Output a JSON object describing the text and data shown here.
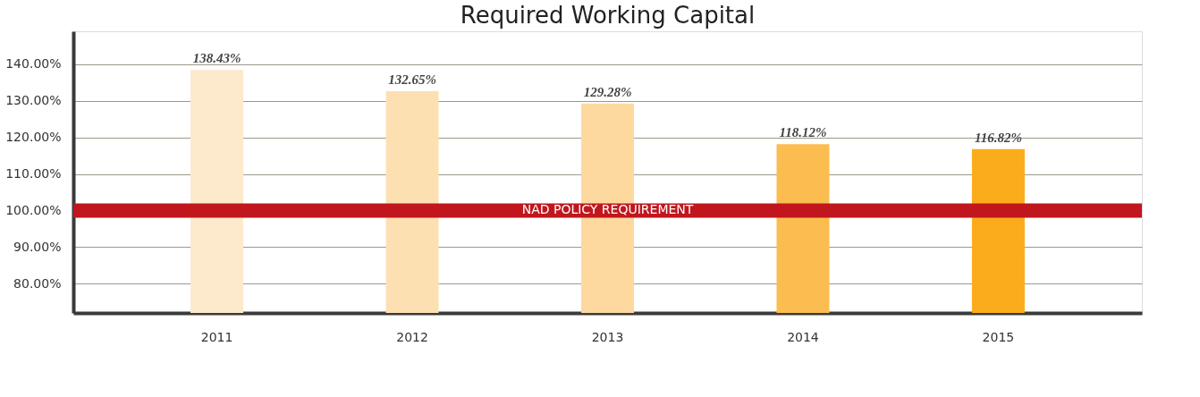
{
  "chart_data": {
    "type": "bar",
    "title": "Required Working Capital",
    "categories": [
      "2011",
      "2012",
      "2013",
      "2014",
      "2015"
    ],
    "values": [
      138.43,
      132.65,
      129.28,
      118.12,
      116.82
    ],
    "colors": [
      "#fde9cc",
      "#fde0b2",
      "#fdd9a0",
      "#fbbd4f",
      "#fbac1a"
    ],
    "value_labels": [
      "138.43%",
      "132.65%",
      "129.28%",
      "118.12%",
      "116.82%"
    ],
    "ylim": [
      72,
      149
    ],
    "yticks": [
      {
        "value": 80,
        "label": "80.00%"
      },
      {
        "value": 90,
        "label": "90.00%"
      },
      {
        "value": 100,
        "label": "100.00%"
      },
      {
        "value": 110,
        "label": "110.00%"
      },
      {
        "value": 120,
        "label": "120.00%"
      },
      {
        "value": 130,
        "label": "130.00%"
      },
      {
        "value": 140,
        "label": "140.00%"
      }
    ],
    "ref_lines": [
      {
        "axis": "y",
        "value": 100,
        "label": "NAD POLICY REQUIREMENT",
        "color": "#c1161d"
      }
    ],
    "grid": "y"
  }
}
